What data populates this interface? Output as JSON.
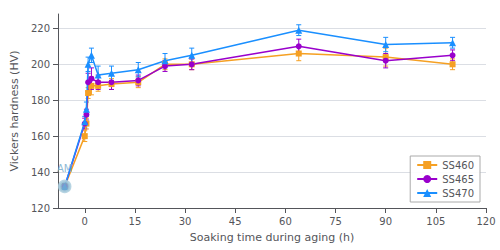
{
  "chart_data": {
    "type": "line",
    "xlabel": "Soaking time during aging (h)",
    "ylabel": "Vickers hardness (HV)",
    "xlim": [
      -8,
      120
    ],
    "ylim": [
      120,
      228
    ],
    "xticks": [
      0,
      15,
      30,
      45,
      60,
      75,
      90,
      105,
      120
    ],
    "yticks": [
      120,
      140,
      160,
      180,
      200,
      220
    ],
    "grid": true,
    "legend": "lower right",
    "x": [
      -6,
      0,
      0.5,
      1,
      2,
      4,
      8,
      16,
      24,
      32,
      64,
      90,
      110
    ],
    "series": [
      {
        "name": "SS460",
        "color": "#f5a023",
        "marker": "square",
        "values": [
          132,
          160,
          167,
          184,
          188,
          188,
          189,
          190,
          200,
          200,
          206,
          204,
          200
        ],
        "yerr": [
          1.5,
          3,
          3,
          3,
          5,
          3,
          3,
          3,
          3,
          3,
          4,
          5,
          3
        ]
      },
      {
        "name": "SS465",
        "color": "#9900cc",
        "marker": "circle",
        "values": [
          132,
          167,
          172,
          190,
          192,
          190,
          190,
          191,
          199,
          200,
          210,
          202,
          205
        ],
        "yerr": [
          1.5,
          3,
          3,
          5,
          6,
          4,
          4,
          3,
          3,
          3,
          4,
          4,
          3
        ]
      },
      {
        "name": "SS470",
        "color": "#1a8fff",
        "marker": "triangle",
        "values": [
          132,
          168,
          175,
          200,
          205,
          194,
          195,
          197,
          202,
          205,
          219,
          211,
          212
        ],
        "yerr": [
          1.5,
          3,
          4,
          4,
          4,
          5,
          4,
          4,
          4,
          4,
          3,
          4,
          3
        ]
      }
    ],
    "annotations": [
      {
        "text": "AM",
        "x": -6,
        "y": 132,
        "color": "#7aaccc"
      }
    ]
  }
}
